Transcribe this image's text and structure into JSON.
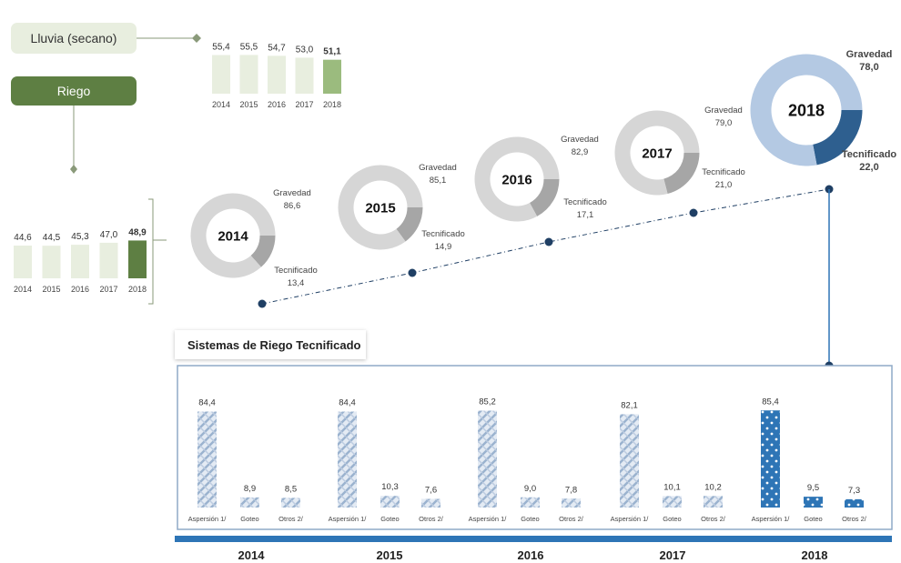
{
  "labels": {
    "lluvia": "Lluvia (secano)",
    "riego": "Riego",
    "sistemas_title": "Sistemas de Riego Tecnificado"
  },
  "colors": {
    "lluvia_bar": "#e8eedf",
    "lluvia_bar_last": "#9bbb7e",
    "riego_bar": "#e8eedf",
    "riego_bar_last": "#5e7f43",
    "donut_gravedad": "#d6d6d6",
    "donut_tecnificado": "#a6a6a6",
    "donut_gravedad_2018": "#b4c9e3",
    "donut_tecnificado_2018": "#2e5f8f",
    "accent_blue": "#2e75b6",
    "dark_blue": "#1f3f64",
    "pattern_blue": "#9bb3cf"
  },
  "chart_data": [
    {
      "type": "bar",
      "id": "lluvia",
      "categories": [
        "2014",
        "2015",
        "2016",
        "2017",
        "2018"
      ],
      "values": [
        55.4,
        55.5,
        54.7,
        53.0,
        51.1
      ],
      "value_labels": [
        "55,4",
        "55,5",
        "54,7",
        "53,0",
        "51,1"
      ]
    },
    {
      "type": "bar",
      "id": "riego",
      "categories": [
        "2014",
        "2015",
        "2016",
        "2017",
        "2018"
      ],
      "values": [
        44.6,
        44.5,
        45.3,
        47.0,
        48.9
      ],
      "value_labels": [
        "44,6",
        "44,5",
        "45,3",
        "47,0",
        "48,9"
      ]
    },
    {
      "type": "pie",
      "id": "riego_por_tipo",
      "years": [
        "2014",
        "2015",
        "2016",
        "2017",
        "2018"
      ],
      "series": [
        {
          "name": "Gravedad",
          "values": [
            86.6,
            85.1,
            82.9,
            79.0,
            78.0
          ],
          "value_labels": [
            "86,6",
            "85,1",
            "82,9",
            "79,0",
            "78,0"
          ]
        },
        {
          "name": "Tecnificado",
          "values": [
            13.4,
            14.9,
            17.1,
            21.0,
            22.0
          ],
          "value_labels": [
            "13,4",
            "14,9",
            "17,1",
            "21,0",
            "22,0"
          ]
        }
      ]
    },
    {
      "type": "bar",
      "id": "sistemas",
      "groups": [
        "2014",
        "2015",
        "2016",
        "2017",
        "2018"
      ],
      "categories": [
        "Aspersión 1/",
        "Goteo",
        "Otros 2/"
      ],
      "values": [
        [
          84.4,
          8.9,
          8.5
        ],
        [
          84.4,
          10.3,
          7.6
        ],
        [
          85.2,
          9.0,
          7.8
        ],
        [
          82.1,
          10.1,
          10.2
        ],
        [
          85.4,
          9.5,
          7.3
        ]
      ],
      "value_labels": [
        [
          "84,4",
          "8,9",
          "8,5"
        ],
        [
          "84,4",
          "10,3",
          "7,6"
        ],
        [
          "85,2",
          "9,0",
          "7,8"
        ],
        [
          "82,1",
          "10,1",
          "10,2"
        ],
        [
          "85,4",
          "9,5",
          "7,3"
        ]
      ]
    }
  ]
}
